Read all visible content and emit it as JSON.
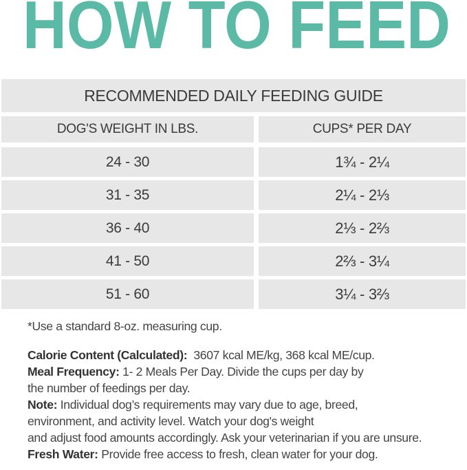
{
  "title": "HOW TO FEED",
  "accent_color": "#5bbaa6",
  "table": {
    "heading": "RECOMMENDED DAILY FEEDING GUIDE",
    "columns": [
      "DOG'S WEIGHT IN LBS.",
      "CUPS* PER DAY"
    ],
    "rows": [
      {
        "weight": "24 - 30",
        "cups": "1¾ - 2¼"
      },
      {
        "weight": "31 - 35",
        "cups": "2¼ - 2⅓"
      },
      {
        "weight": "36 - 40",
        "cups": "2⅓ - 2⅔"
      },
      {
        "weight": "41 - 50",
        "cups": "2⅔ - 3¼"
      },
      {
        "weight": "51 - 60",
        "cups": "3¼ - 3⅔"
      }
    ]
  },
  "footnote": "*Use a standard 8-oz. measuring cup.",
  "notes": {
    "calorie_label": "Calorie Content (Calculated):",
    "calorie_text": "3607 kcal ME/kg, 368 kcal ME/cup.",
    "meal_label": "Meal Frequency:",
    "meal_text1": "1- 2 Meals Per Day. Divide the cups per day by",
    "meal_text2": "the number of feedings per day.",
    "note_label": "Note:",
    "note_text1": "Individual dog’s requirements may vary due to age, breed,",
    "note_text2": "environment, and activity level. Watch your dog's weight",
    "note_text3": "and adjust food amounts accordingly. Ask your veterinarian if you are unsure.",
    "water_label": "Fresh Water:",
    "water_text": "Provide free access to fresh, clean water for your dog."
  }
}
